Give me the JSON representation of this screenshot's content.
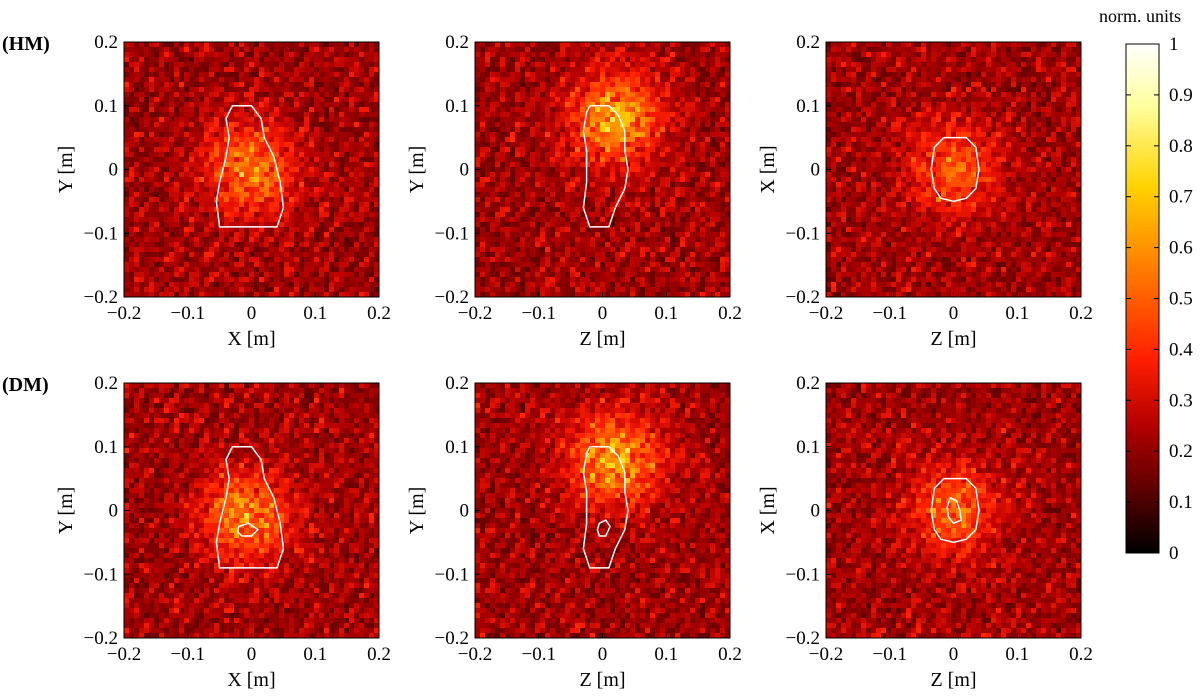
{
  "colorbar": {
    "title": "norm. units",
    "ticks": [
      "0",
      "0.1",
      "0.2",
      "0.3",
      "0.4",
      "0.5",
      "0.6",
      "0.7",
      "0.8",
      "0.9",
      "1"
    ],
    "range": [
      0,
      1
    ],
    "colormap": [
      "#000000",
      "#5a0000",
      "#b40000",
      "#ff1e00",
      "#ff7800",
      "#ffd200",
      "#ffffa0",
      "#ffffff"
    ]
  },
  "rows": [
    {
      "label": "(HM)"
    },
    {
      "label": "(DM)"
    }
  ],
  "ticks": {
    "x": [
      "−0.2",
      "−0.1",
      "0",
      "0.1",
      "0.2"
    ],
    "y": [
      "0.2",
      "0.1",
      "0",
      "−0.1",
      "−0.2"
    ]
  },
  "chart_data": [
    {
      "type": "heatmap",
      "row": "(HM)",
      "xlabel": "X [m]",
      "ylabel": "Y [m]",
      "xlim": [
        -0.2,
        0.2
      ],
      "ylim": [
        -0.2,
        0.2
      ],
      "hotspot": [
        0.0,
        0.0
      ],
      "peak": 0.75,
      "contour_outer": [
        [
          -0.04,
          0.08
        ],
        [
          -0.03,
          0.1
        ],
        [
          0.0,
          0.1
        ],
        [
          0.015,
          0.08
        ],
        [
          0.02,
          0.05
        ],
        [
          0.035,
          0.02
        ],
        [
          0.045,
          -0.02
        ],
        [
          0.05,
          -0.06
        ],
        [
          0.04,
          -0.09
        ],
        [
          0.0,
          -0.09
        ],
        [
          -0.05,
          -0.09
        ],
        [
          -0.055,
          -0.05
        ],
        [
          -0.05,
          -0.02
        ],
        [
          -0.04,
          0.02
        ],
        [
          -0.035,
          0.05
        ]
      ],
      "contour_inner": []
    },
    {
      "type": "heatmap",
      "row": "(HM)",
      "xlabel": "Z [m]",
      "ylabel": "Y [m]",
      "xlim": [
        -0.2,
        0.2
      ],
      "ylim": [
        -0.2,
        0.2
      ],
      "hotspot": [
        0.02,
        0.08
      ],
      "peak": 0.95,
      "contour_outer": [
        [
          -0.025,
          0.09
        ],
        [
          -0.02,
          0.1
        ],
        [
          0.01,
          0.1
        ],
        [
          0.025,
          0.085
        ],
        [
          0.035,
          0.06
        ],
        [
          0.035,
          0.03
        ],
        [
          0.04,
          0.0
        ],
        [
          0.035,
          -0.03
        ],
        [
          0.02,
          -0.06
        ],
        [
          0.01,
          -0.09
        ],
        [
          -0.02,
          -0.09
        ],
        [
          -0.03,
          -0.06
        ],
        [
          -0.025,
          -0.02
        ],
        [
          -0.025,
          0.03
        ],
        [
          -0.03,
          0.06
        ]
      ],
      "contour_inner": []
    },
    {
      "type": "heatmap",
      "row": "(HM)",
      "xlabel": "Z [m]",
      "ylabel": "X [m]",
      "xlim": [
        -0.2,
        0.2
      ],
      "ylim": [
        -0.2,
        0.2
      ],
      "hotspot": [
        0.0,
        0.0
      ],
      "peak": 0.6,
      "contour_outer": [
        [
          0.0,
          0.05
        ],
        [
          0.02,
          0.05
        ],
        [
          0.035,
          0.035
        ],
        [
          0.04,
          0.0
        ],
        [
          0.035,
          -0.03
        ],
        [
          0.02,
          -0.045
        ],
        [
          0.0,
          -0.05
        ],
        [
          -0.02,
          -0.045
        ],
        [
          -0.03,
          -0.03
        ],
        [
          -0.035,
          0.0
        ],
        [
          -0.03,
          0.035
        ],
        [
          -0.015,
          0.05
        ]
      ],
      "contour_inner": []
    },
    {
      "type": "heatmap",
      "row": "(DM)",
      "xlabel": "X [m]",
      "ylabel": "Y [m]",
      "xlim": [
        -0.2,
        0.2
      ],
      "ylim": [
        -0.2,
        0.2
      ],
      "hotspot": [
        -0.01,
        -0.01
      ],
      "peak": 0.8,
      "contour_outer": [
        [
          -0.04,
          0.08
        ],
        [
          -0.03,
          0.1
        ],
        [
          0.0,
          0.1
        ],
        [
          0.015,
          0.08
        ],
        [
          0.02,
          0.05
        ],
        [
          0.035,
          0.02
        ],
        [
          0.045,
          -0.02
        ],
        [
          0.05,
          -0.06
        ],
        [
          0.04,
          -0.09
        ],
        [
          0.0,
          -0.09
        ],
        [
          -0.05,
          -0.09
        ],
        [
          -0.055,
          -0.05
        ],
        [
          -0.05,
          -0.02
        ],
        [
          -0.04,
          0.02
        ],
        [
          -0.035,
          0.05
        ]
      ],
      "contour_inner": [
        [
          -0.02,
          -0.025
        ],
        [
          -0.005,
          -0.02
        ],
        [
          0.01,
          -0.03
        ],
        [
          0.0,
          -0.04
        ],
        [
          -0.015,
          -0.04
        ],
        [
          -0.022,
          -0.033
        ]
      ]
    },
    {
      "type": "heatmap",
      "row": "(DM)",
      "xlabel": "Z [m]",
      "ylabel": "Y [m]",
      "xlim": [
        -0.2,
        0.2
      ],
      "ylim": [
        -0.2,
        0.2
      ],
      "hotspot": [
        0.02,
        0.08
      ],
      "peak": 0.95,
      "contour_outer": [
        [
          -0.025,
          0.09
        ],
        [
          -0.02,
          0.1
        ],
        [
          0.01,
          0.1
        ],
        [
          0.025,
          0.085
        ],
        [
          0.035,
          0.06
        ],
        [
          0.035,
          0.03
        ],
        [
          0.04,
          0.0
        ],
        [
          0.035,
          -0.03
        ],
        [
          0.02,
          -0.06
        ],
        [
          0.01,
          -0.09
        ],
        [
          -0.02,
          -0.09
        ],
        [
          -0.03,
          -0.06
        ],
        [
          -0.025,
          -0.02
        ],
        [
          -0.025,
          0.03
        ],
        [
          -0.03,
          0.06
        ]
      ],
      "contour_inner": [
        [
          -0.005,
          -0.02
        ],
        [
          0.005,
          -0.015
        ],
        [
          0.012,
          -0.025
        ],
        [
          0.005,
          -0.04
        ],
        [
          -0.005,
          -0.04
        ],
        [
          -0.008,
          -0.03
        ]
      ]
    },
    {
      "type": "heatmap",
      "row": "(DM)",
      "xlabel": "Z [m]",
      "ylabel": "X [m]",
      "xlim": [
        -0.2,
        0.2
      ],
      "ylim": [
        -0.2,
        0.2
      ],
      "hotspot": [
        0.0,
        0.0
      ],
      "peak": 0.65,
      "contour_outer": [
        [
          0.0,
          0.05
        ],
        [
          0.02,
          0.05
        ],
        [
          0.035,
          0.035
        ],
        [
          0.04,
          0.0
        ],
        [
          0.035,
          -0.03
        ],
        [
          0.02,
          -0.045
        ],
        [
          0.0,
          -0.05
        ],
        [
          -0.02,
          -0.045
        ],
        [
          -0.03,
          -0.03
        ],
        [
          -0.035,
          0.0
        ],
        [
          -0.03,
          0.035
        ],
        [
          -0.015,
          0.05
        ]
      ],
      "contour_inner": [
        [
          -0.005,
          0.02
        ],
        [
          0.005,
          0.015
        ],
        [
          0.01,
          0.0
        ],
        [
          0.012,
          -0.015
        ],
        [
          0.0,
          -0.02
        ],
        [
          -0.008,
          -0.01
        ],
        [
          -0.01,
          0.005
        ]
      ]
    }
  ]
}
